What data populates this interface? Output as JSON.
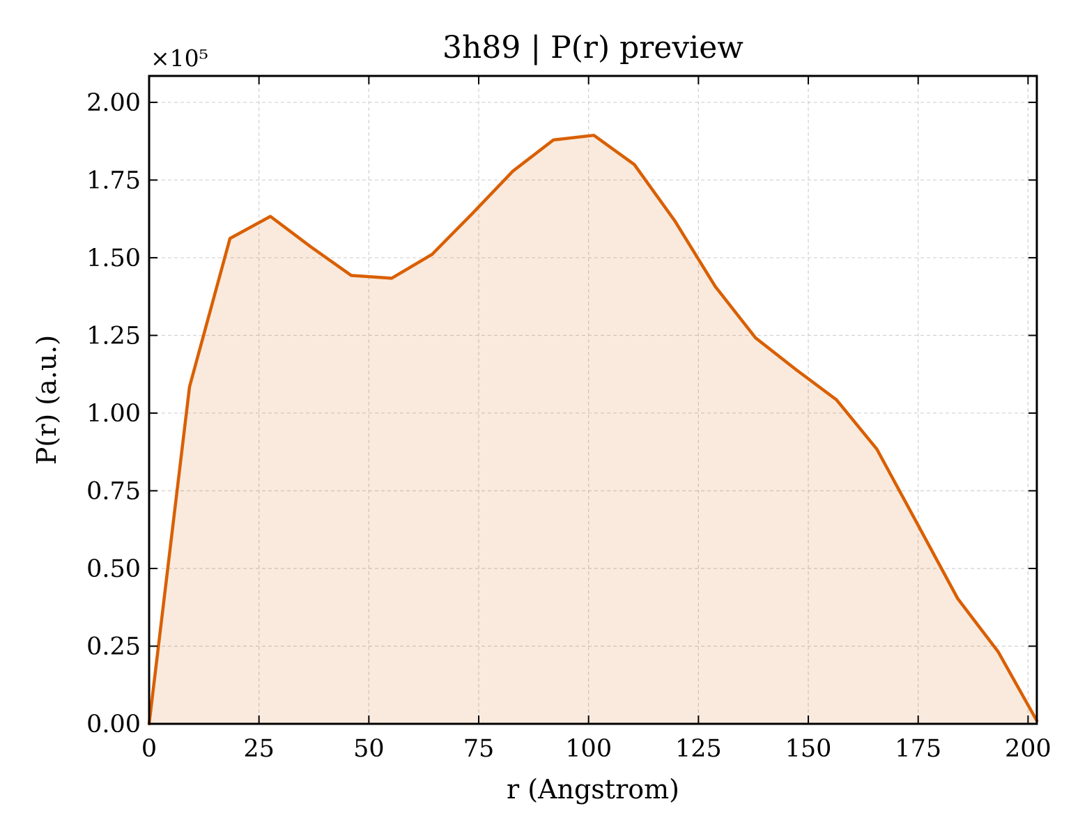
{
  "chart_data": {
    "type": "area",
    "title": "3h89 | P(r) preview",
    "xlabel": "r (Angstrom)",
    "ylabel": "P(r) (a.u.)",
    "y_multiplier_label": "×10⁵",
    "xlim": [
      0,
      202
    ],
    "ylim": [
      0,
      2.085
    ],
    "x_ticks": [
      0,
      25,
      50,
      75,
      100,
      125,
      150,
      175,
      200
    ],
    "x_tick_labels": [
      "0",
      "25",
      "50",
      "75",
      "100",
      "125",
      "150",
      "175",
      "200"
    ],
    "y_ticks": [
      0,
      0.25,
      0.5,
      0.75,
      1.0,
      1.25,
      1.5,
      1.75,
      2.0
    ],
    "y_tick_labels": [
      "0.00",
      "0.25",
      "0.50",
      "0.75",
      "1.00",
      "1.25",
      "1.50",
      "1.75",
      "2.00"
    ],
    "grid": true,
    "series": [
      {
        "color": "#d95f02",
        "fill_color": "#d95f02",
        "fill_opacity": 0.13,
        "x": [
          0,
          9.2,
          18.4,
          27.6,
          36.8,
          46.0,
          55.2,
          64.4,
          73.6,
          82.8,
          92.0,
          101.2,
          110.4,
          119.6,
          128.8,
          138.0,
          147.2,
          156.4,
          165.6,
          174.8,
          184.0,
          193.2,
          202.0
        ],
        "y": [
          0.0,
          1.085,
          1.562,
          1.633,
          1.535,
          1.443,
          1.434,
          1.511,
          1.643,
          1.779,
          1.879,
          1.894,
          1.8,
          1.619,
          1.408,
          1.242,
          1.14,
          1.043,
          0.884,
          0.644,
          0.403,
          0.232,
          0.01
        ]
      }
    ]
  }
}
